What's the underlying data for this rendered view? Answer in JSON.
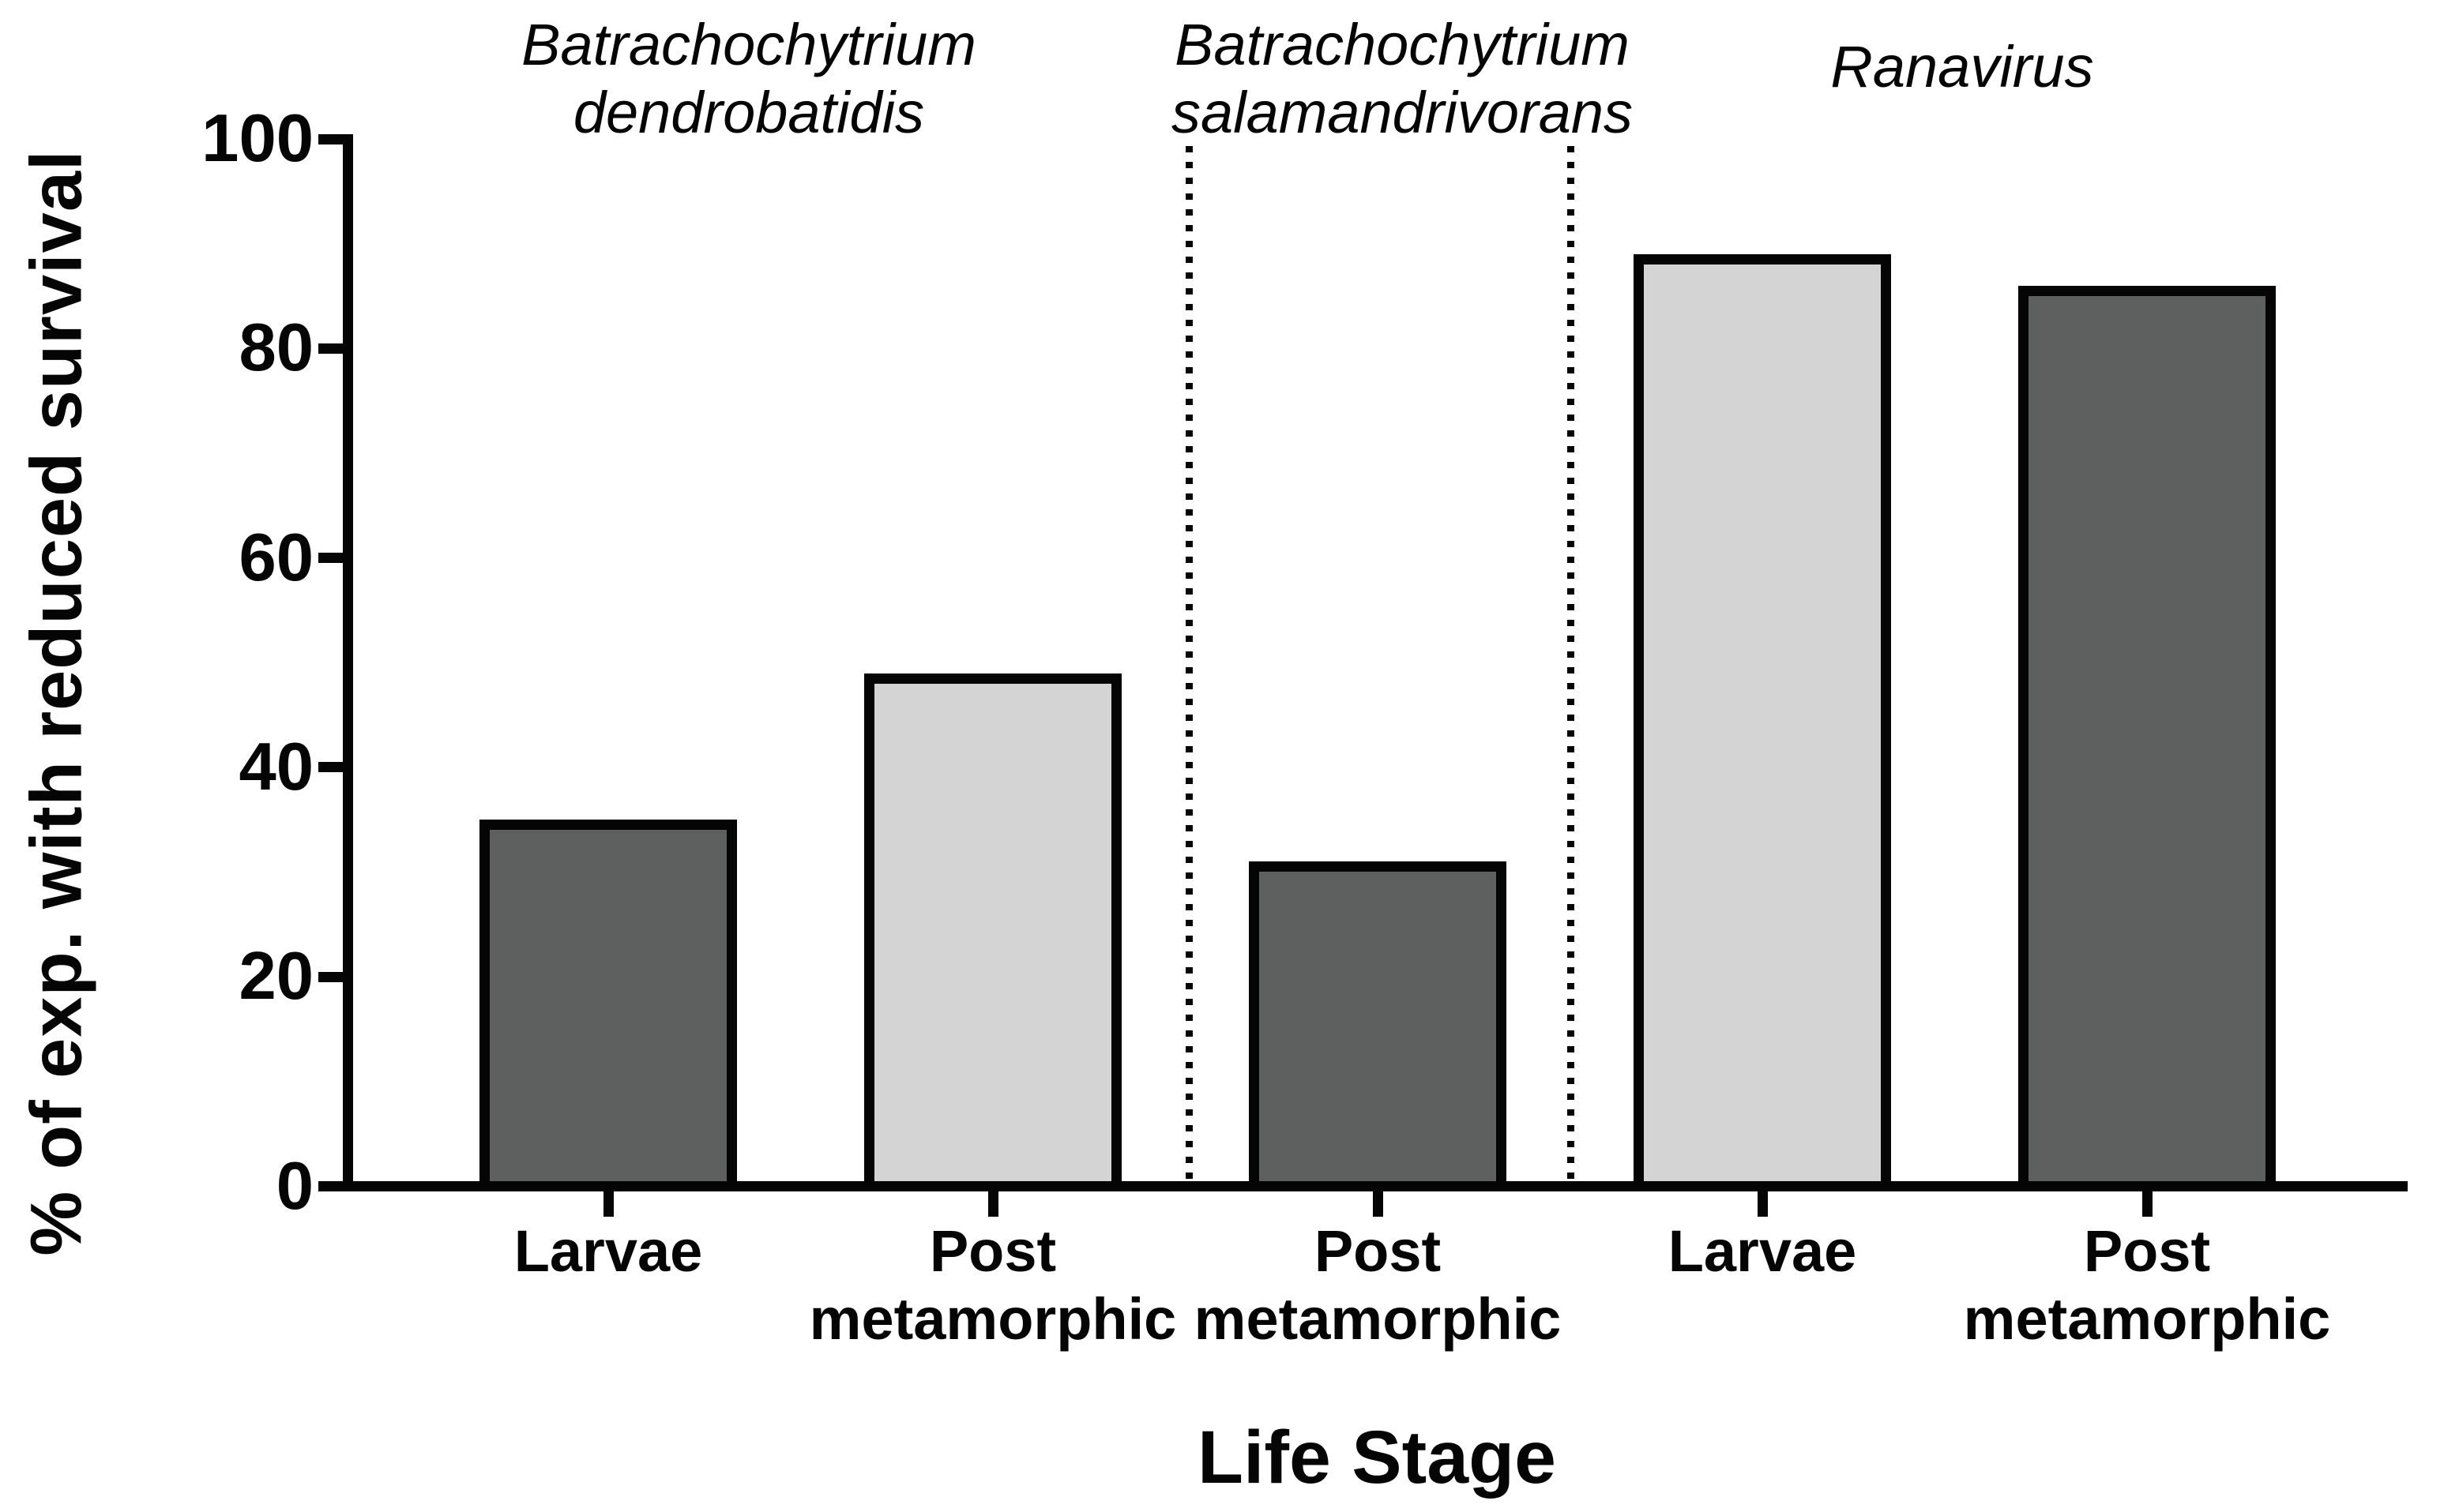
{
  "figure": {
    "background": "#ffffff",
    "text_color": "#050505"
  },
  "chart_data": {
    "type": "bar",
    "title": "",
    "xlabel": "Life Stage",
    "ylabel": "% of exp. with reduced survival",
    "ylim": [
      0,
      100
    ],
    "yticks": [
      0,
      20,
      40,
      60,
      80,
      100
    ],
    "grid": false,
    "legend": "none",
    "groups": [
      {
        "name": "Batrachochytrium dendrobatidis",
        "lines": [
          "Batrachochytrium",
          "dendrobatidis"
        ]
      },
      {
        "name": "Batrachochytrium salamandrivorans",
        "lines": [
          "Batrachochytrium",
          "salamandrivorans"
        ]
      },
      {
        "name": "Ranavirus",
        "lines": [
          "Ranavirus"
        ]
      }
    ],
    "categories": [
      "Larvae",
      "Post metamorphic",
      "Post metamorphic",
      "Larvae",
      "Post metamorphic"
    ],
    "bars": [
      {
        "category": "Larvae",
        "category_lines": [
          "Larvae"
        ],
        "group": "Batrachochytrium dendrobatidis",
        "value": 35,
        "fill": "#5e5f5f"
      },
      {
        "category": "Post metamorphic",
        "category_lines": [
          "Post",
          "metamorphic"
        ],
        "group": "Batrachochytrium dendrobatidis",
        "value": 49,
        "fill": "#d3d4d3"
      },
      {
        "category": "Post metamorphic",
        "category_lines": [
          "Post",
          "metamorphic"
        ],
        "group": "Batrachochytrium salamandrivorans",
        "value": 31,
        "fill": "#5e5f5f"
      },
      {
        "category": "Larvae",
        "category_lines": [
          "Larvae"
        ],
        "group": "Ranavirus",
        "value": 89,
        "fill": "#d3d4d3"
      },
      {
        "category": "Post metamorphic",
        "category_lines": [
          "Post",
          "metamorphic"
        ],
        "group": "Ranavirus",
        "value": 86,
        "fill": "#5e5f5f"
      }
    ],
    "colors": {
      "axis": "#050505",
      "bar_border": "#050505",
      "dark_fill": "#5e5f5f",
      "light_fill": "#d3d4d3"
    },
    "separators": {
      "style": "dotted",
      "count": 2,
      "between": [
        "Batrachochytrium dendrobatidis | Batrachochytrium salamandrivorans",
        "Batrachochytrium salamandrivorans | Ranavirus"
      ]
    }
  }
}
